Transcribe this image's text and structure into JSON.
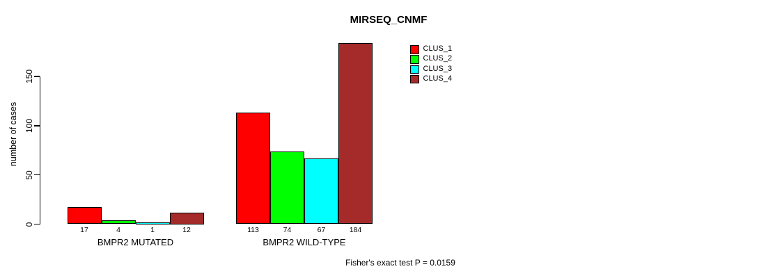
{
  "chart_data": {
    "type": "bar",
    "title": "MIRSEQ_CNMF",
    "xlabel": "",
    "ylabel": "number of cases",
    "categories": [
      "BMPR2 MUTATED",
      "BMPR2 WILD-TYPE"
    ],
    "series": [
      {
        "name": "CLUS_1",
        "color": "#ff0000",
        "values": [
          17,
          113
        ]
      },
      {
        "name": "CLUS_2",
        "color": "#00ff00",
        "values": [
          4,
          74
        ]
      },
      {
        "name": "CLUS_3",
        "color": "#00ffff",
        "values": [
          1,
          67
        ]
      },
      {
        "name": "CLUS_4",
        "color": "#a52a2a",
        "values": [
          12,
          184
        ]
      }
    ],
    "bar_value_labels": [
      [
        17,
        4,
        1,
        12
      ],
      [
        113,
        74,
        67,
        184
      ]
    ],
    "yticks": [
      0,
      50,
      100,
      150
    ],
    "ylim": [
      0,
      150
    ],
    "grid": false,
    "legend": {
      "position": "top-right",
      "entries": [
        "CLUS_1",
        "CLUS_2",
        "CLUS_3",
        "CLUS_4"
      ]
    },
    "annotation": "Fisher's exact test P = 0.0159"
  }
}
